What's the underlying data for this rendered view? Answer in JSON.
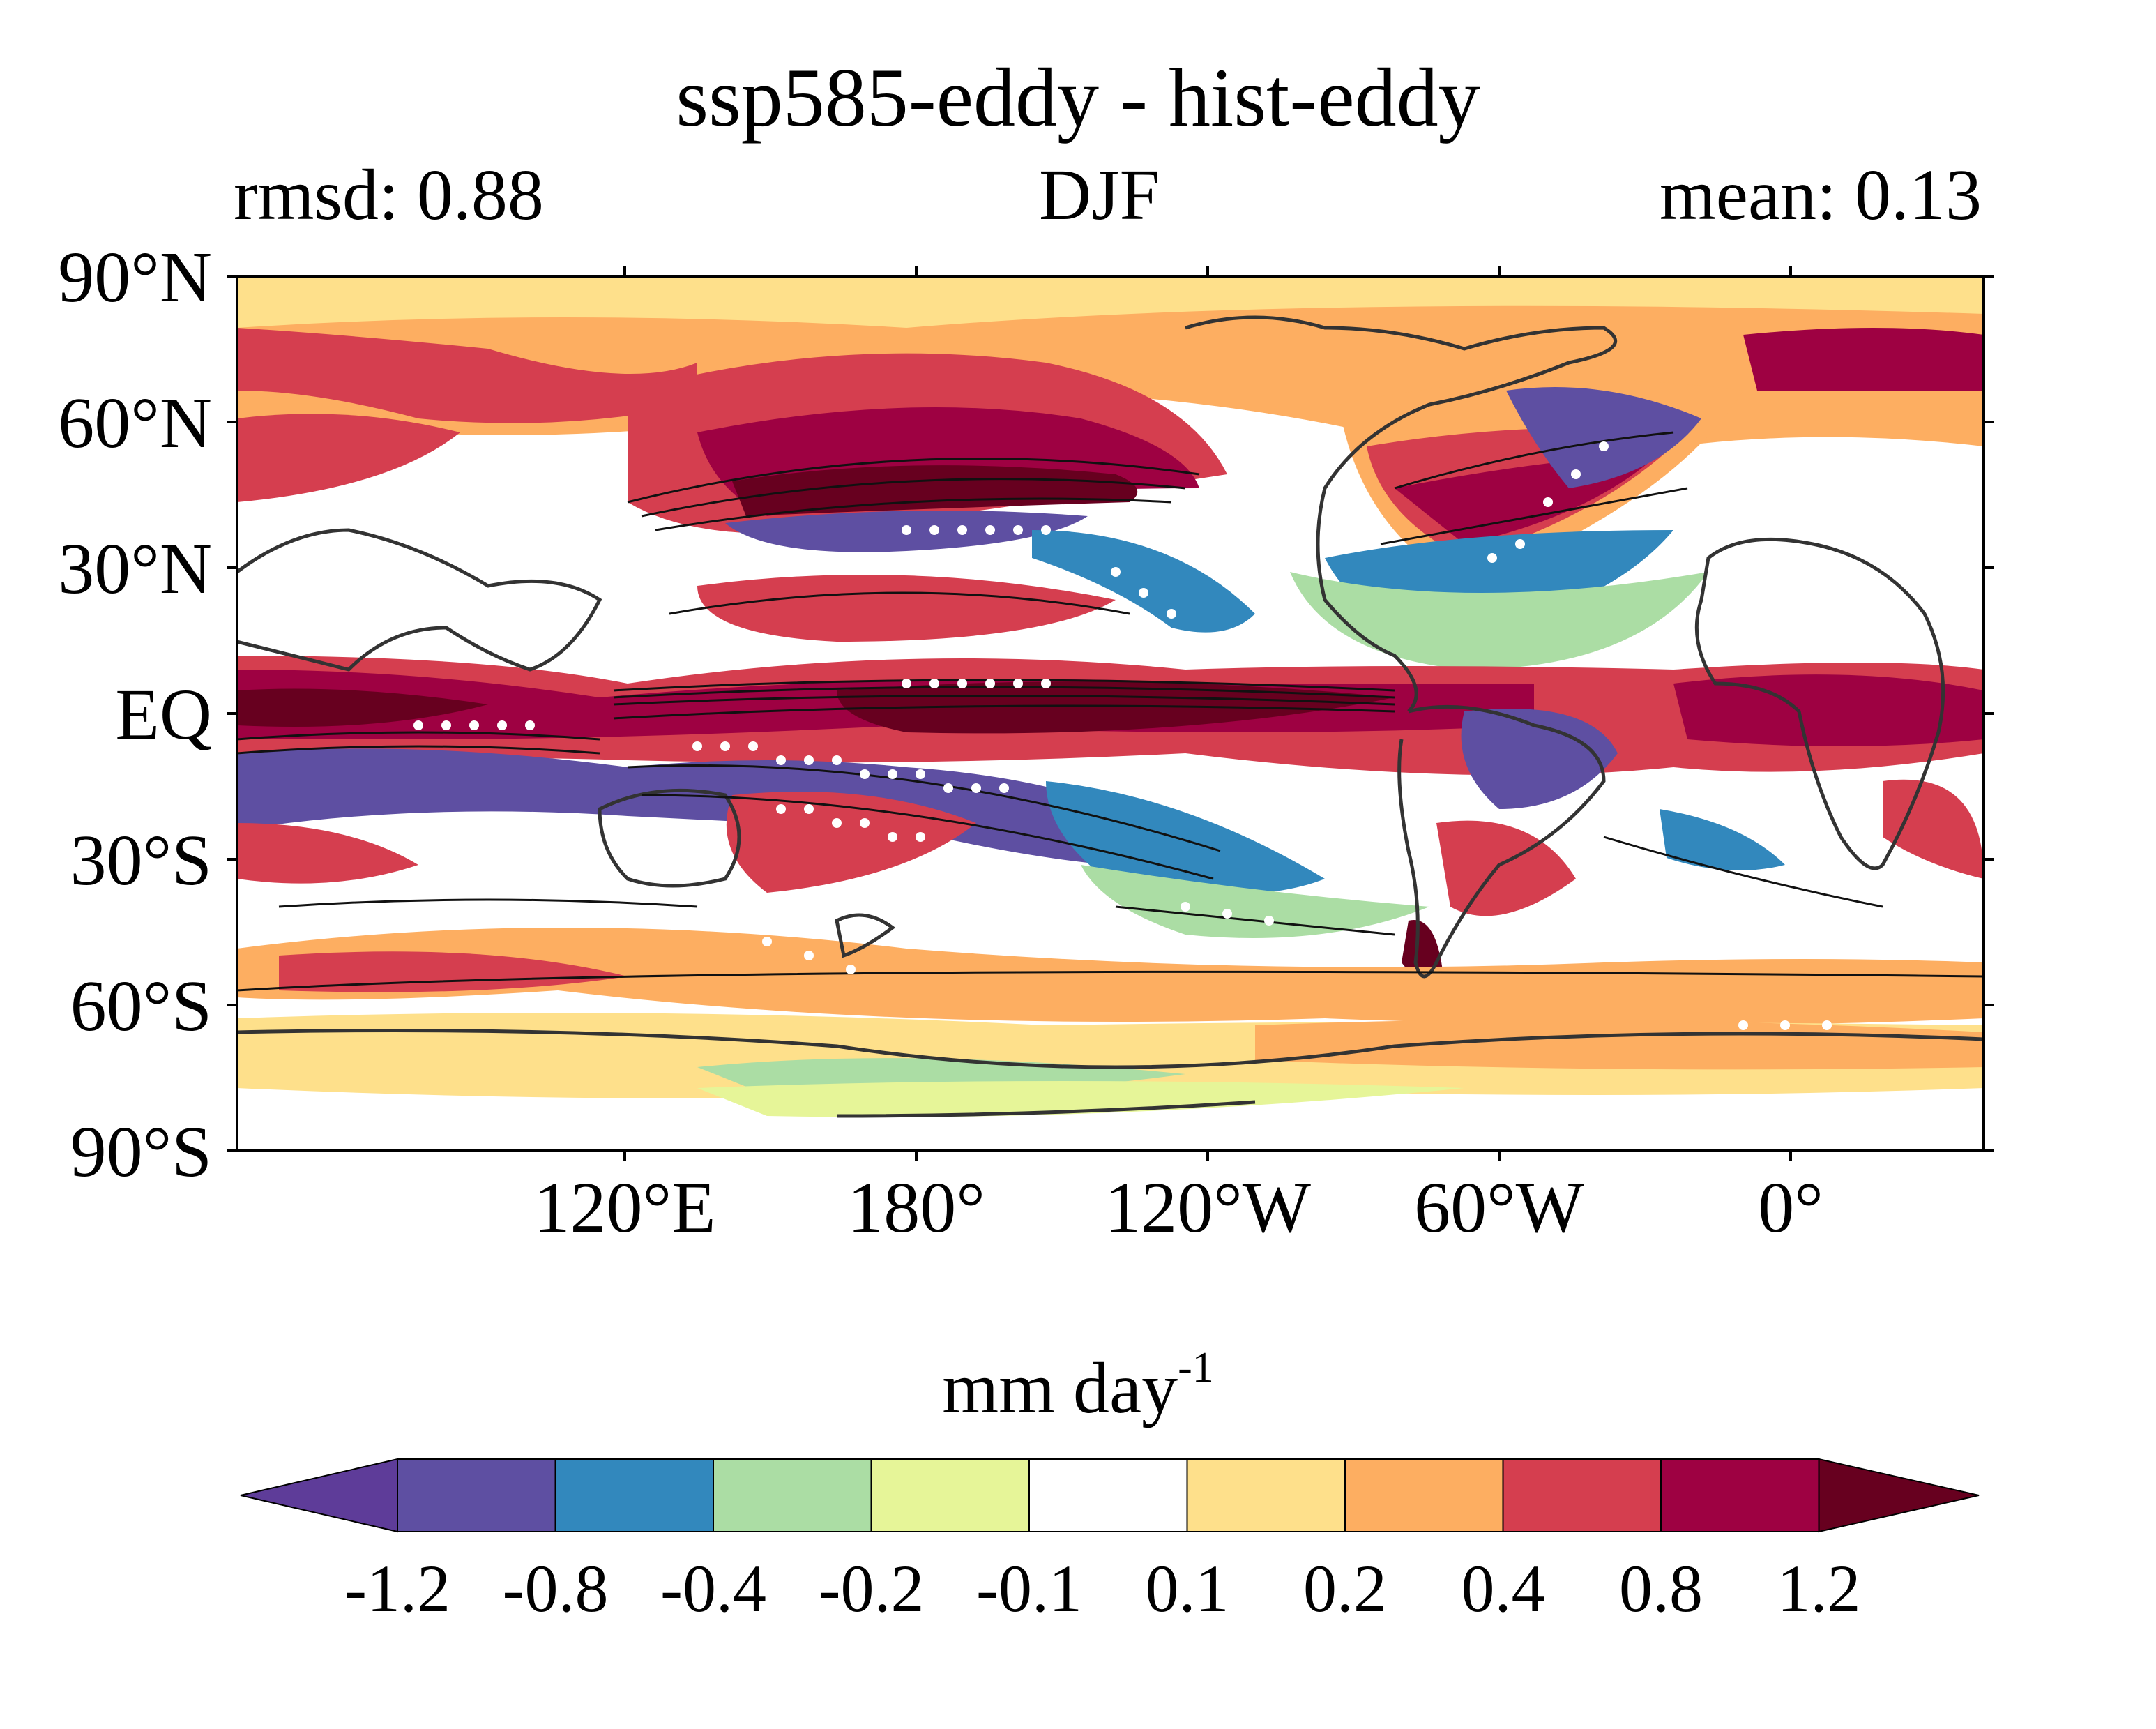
{
  "title": "ssp585-eddy - hist-eddy",
  "left_label": "rmsd: 0.88",
  "center_label": "DJF",
  "right_label": "mean: 0.13",
  "y_ticks": [
    "90°N",
    "60°N",
    "30°N",
    "EQ",
    "30°S",
    "60°S",
    "90°S"
  ],
  "x_ticks": [
    "120°E",
    "180°",
    "120°W",
    "60°W",
    "0°"
  ],
  "colorbar": {
    "units_main": "mm day",
    "units_sup": "-1",
    "levels": [
      "-1.2",
      "-0.8",
      "-0.4",
      "-0.2",
      "-0.1",
      "0.1",
      "0.2",
      "0.4",
      "0.8",
      "1.2"
    ],
    "colors": [
      "#5e3c99",
      "#5e4fa2",
      "#3288bd",
      "#abdda4",
      "#e6f598",
      "#ffffff",
      "#fee08b",
      "#fdae61",
      "#d53e4f",
      "#9e0142",
      "#67001f"
    ]
  },
  "map_colors": {
    "deep_red": "#67001f",
    "dark_red": "#9e0142",
    "red": "#d53e4f",
    "orange": "#fdae61",
    "yellow": "#fee08b",
    "lightyellow": "#e6f598",
    "green": "#abdda4",
    "blue": "#3288bd",
    "purple": "#5e4fa2",
    "contour": "#222222"
  }
}
